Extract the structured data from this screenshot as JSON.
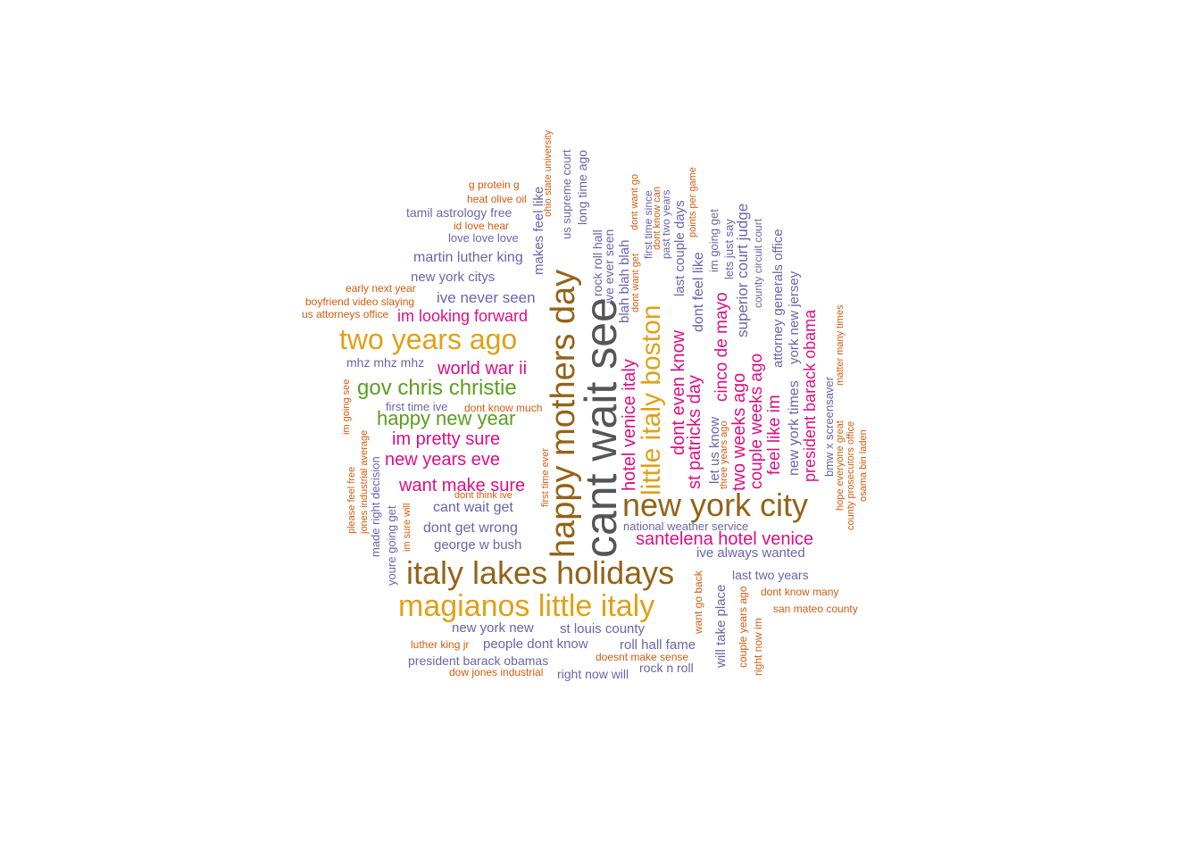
{
  "palette": {
    "brown": "#946317",
    "gold": "#e0a017",
    "gray": "#555555",
    "magenta": "#dc0e83",
    "green": "#5a9e1e",
    "purple": "#6b64a8",
    "orange": "#d25c0e"
  },
  "words": [
    {
      "text": "cant wait see",
      "color": "gray"
    },
    {
      "text": "happy mothers day",
      "color": "brown"
    },
    {
      "text": "new york city",
      "color": "brown"
    },
    {
      "text": "italy lakes holidays",
      "color": "brown"
    },
    {
      "text": "magianos little italy",
      "color": "gold"
    },
    {
      "text": "two years ago",
      "color": "gold"
    },
    {
      "text": "little italy boston",
      "color": "gold"
    },
    {
      "text": "gov chris christie",
      "color": "green"
    },
    {
      "text": "happy new year",
      "color": "green"
    },
    {
      "text": "santelena hotel venice",
      "color": "magenta"
    },
    {
      "text": "hotel venice italy",
      "color": "magenta"
    },
    {
      "text": "new years eve",
      "color": "magenta"
    },
    {
      "text": "im pretty sure",
      "color": "magenta"
    },
    {
      "text": "world war ii",
      "color": "magenta"
    },
    {
      "text": "want make sure",
      "color": "magenta"
    },
    {
      "text": "im looking forward",
      "color": "magenta"
    },
    {
      "text": "st patricks day",
      "color": "magenta"
    },
    {
      "text": "dont even know",
      "color": "magenta"
    },
    {
      "text": "two weeks ago",
      "color": "magenta"
    },
    {
      "text": "couple weeks ago",
      "color": "magenta"
    },
    {
      "text": "cinco de mayo",
      "color": "magenta"
    },
    {
      "text": "feel like im",
      "color": "magenta"
    },
    {
      "text": "president barack obama",
      "color": "magenta"
    },
    {
      "text": "ive never seen",
      "color": "purple"
    },
    {
      "text": "martin luther king",
      "color": "purple"
    },
    {
      "text": "new york citys",
      "color": "purple"
    },
    {
      "text": "tamil astrology free",
      "color": "purple"
    },
    {
      "text": "love love love",
      "color": "purple"
    },
    {
      "text": "mhz mhz mhz",
      "color": "purple"
    },
    {
      "text": "first time ive",
      "color": "purple"
    },
    {
      "text": "cant wait get",
      "color": "purple"
    },
    {
      "text": "dont get wrong",
      "color": "purple"
    },
    {
      "text": "george w bush",
      "color": "purple"
    },
    {
      "text": "new york new",
      "color": "purple"
    },
    {
      "text": "st louis county",
      "color": "purple"
    },
    {
      "text": "people dont know",
      "color": "purple"
    },
    {
      "text": "roll hall fame",
      "color": "purple"
    },
    {
      "text": "president barack obamas",
      "color": "purple"
    },
    {
      "text": "right now will",
      "color": "purple"
    },
    {
      "text": "rock n roll",
      "color": "purple"
    },
    {
      "text": "national weather service",
      "color": "purple"
    },
    {
      "text": "ive always wanted",
      "color": "purple"
    },
    {
      "text": "last two years",
      "color": "purple"
    },
    {
      "text": "will take place",
      "color": "purple"
    },
    {
      "text": "made right decision",
      "color": "purple"
    },
    {
      "text": "youre going get",
      "color": "purple"
    },
    {
      "text": "makes feel like",
      "color": "purple"
    },
    {
      "text": "us supreme court",
      "color": "purple"
    },
    {
      "text": "long time ago",
      "color": "purple"
    },
    {
      "text": "rock roll hall",
      "color": "purple"
    },
    {
      "text": "ive ever seen",
      "color": "purple"
    },
    {
      "text": "blah blah blah",
      "color": "purple"
    },
    {
      "text": "first time since",
      "color": "purple"
    },
    {
      "text": "past two years",
      "color": "purple"
    },
    {
      "text": "last couple days",
      "color": "purple"
    },
    {
      "text": "dont feel like",
      "color": "purple"
    },
    {
      "text": "im going get",
      "color": "purple"
    },
    {
      "text": "lets just say",
      "color": "purple"
    },
    {
      "text": "superior court judge",
      "color": "purple"
    },
    {
      "text": "county circuit court",
      "color": "purple"
    },
    {
      "text": "attorney generals office",
      "color": "purple"
    },
    {
      "text": "new york times",
      "color": "purple"
    },
    {
      "text": "york new jersey",
      "color": "purple"
    },
    {
      "text": "let us know",
      "color": "purple"
    },
    {
      "text": "bmw x screensaver",
      "color": "purple"
    },
    {
      "text": "g protein g",
      "color": "orange"
    },
    {
      "text": "heat olive oil",
      "color": "orange"
    },
    {
      "text": "id love hear",
      "color": "orange"
    },
    {
      "text": "early next year",
      "color": "orange"
    },
    {
      "text": "boyfriend video slaying",
      "color": "orange"
    },
    {
      "text": "us attorneys office",
      "color": "orange"
    },
    {
      "text": "dont know much",
      "color": "orange"
    },
    {
      "text": "dont think ive",
      "color": "orange"
    },
    {
      "text": "luther king jr",
      "color": "orange"
    },
    {
      "text": "doesnt make sense",
      "color": "orange"
    },
    {
      "text": "dow jones industrial",
      "color": "orange"
    },
    {
      "text": "dont know many",
      "color": "orange"
    },
    {
      "text": "san mateo county",
      "color": "orange"
    },
    {
      "text": "im going see",
      "color": "orange"
    },
    {
      "text": "jones industrial average",
      "color": "orange"
    },
    {
      "text": "please feel free",
      "color": "orange"
    },
    {
      "text": "im sure will",
      "color": "orange"
    },
    {
      "text": "first time ever",
      "color": "orange"
    },
    {
      "text": "ohio state university",
      "color": "orange"
    },
    {
      "text": "dont want go",
      "color": "orange"
    },
    {
      "text": "dont want get",
      "color": "orange"
    },
    {
      "text": "dont know can",
      "color": "orange"
    },
    {
      "text": "points per game",
      "color": "orange"
    },
    {
      "text": "three years ago",
      "color": "orange"
    },
    {
      "text": "want go back",
      "color": "orange"
    },
    {
      "text": "couple years ago",
      "color": "orange"
    },
    {
      "text": "right now im",
      "color": "orange"
    },
    {
      "text": "matter many times",
      "color": "orange"
    },
    {
      "text": "hope everyone great",
      "color": "orange"
    },
    {
      "text": "county prosecutors office",
      "color": "orange"
    },
    {
      "text": "osama bin laden",
      "color": "orange"
    }
  ]
}
